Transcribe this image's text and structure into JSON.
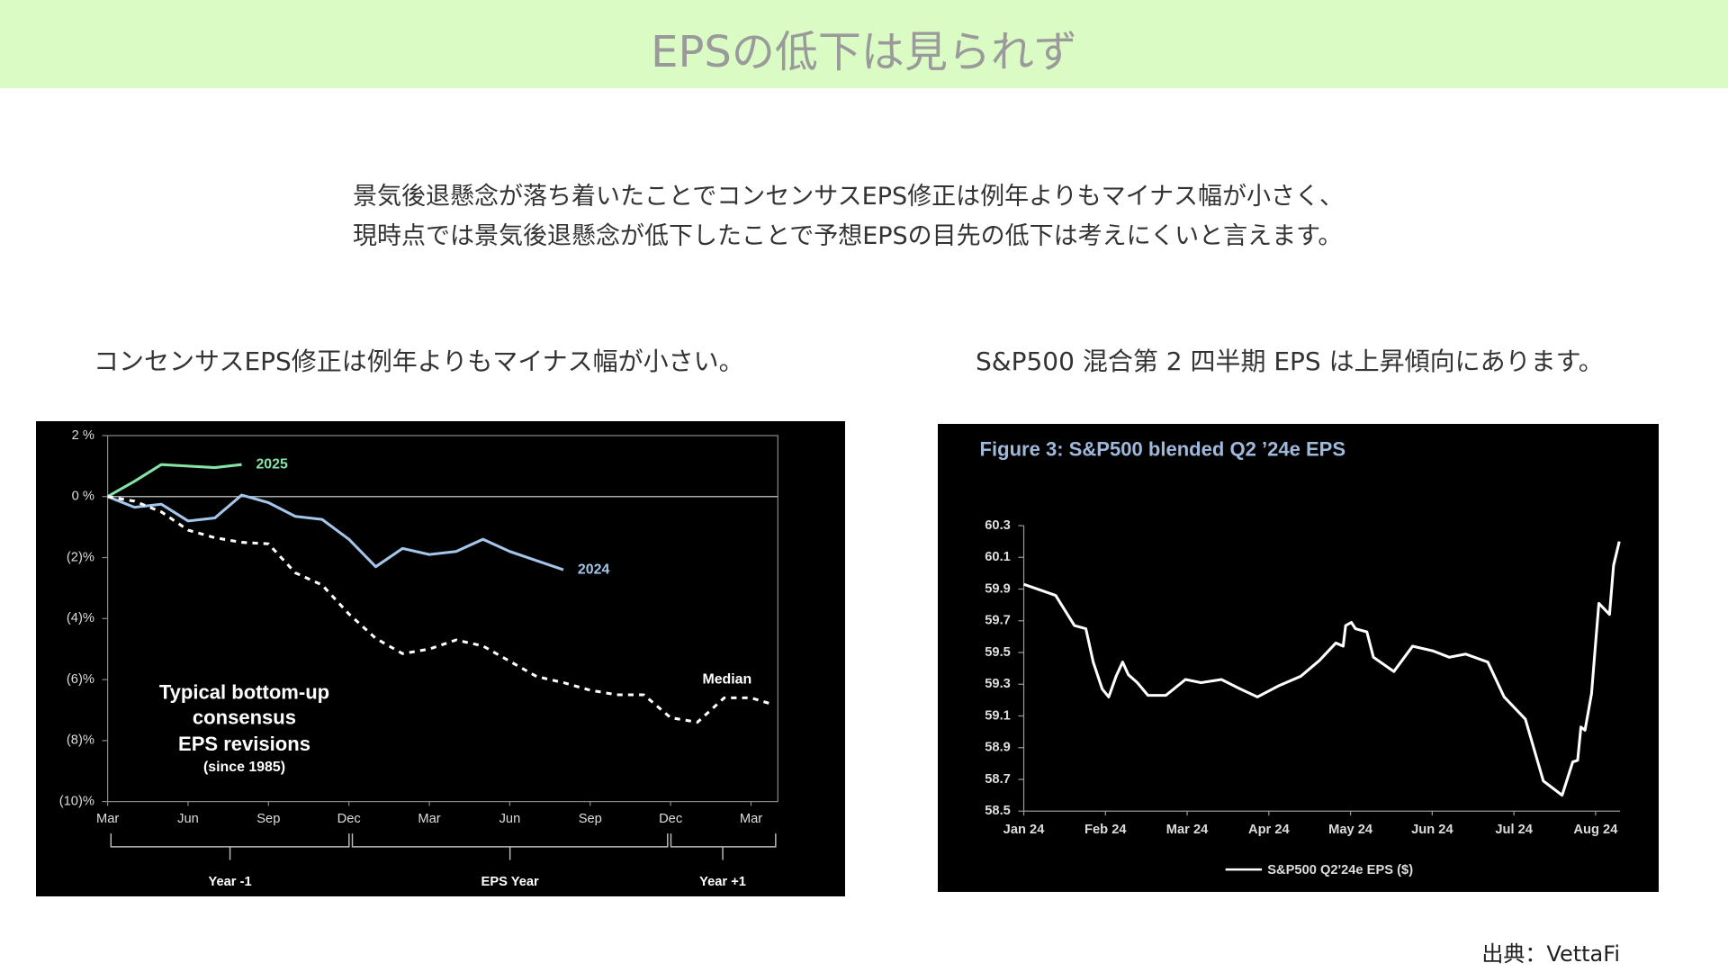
{
  "header": {
    "title": "EPSの低下は見られず"
  },
  "body": [
    "景気後退懸念が落ち着いたことでコンセンサスEPS修正は例年よりもマイナス幅が小さく、",
    "現時点では景気後退懸念が低下したことで予想EPSの目先の低下は考えにくいと言えます。"
  ],
  "captions": [
    "コンセンサスEPS修正は例年よりもマイナス幅が小さい。",
    "S&P500 混合第 2 四半期 EPS は上昇傾向にあります。"
  ],
  "source": "出典：VettaFi",
  "chart_data": [
    {
      "type": "line",
      "annotation": [
        "Typical bottom-up",
        "consensus",
        "EPS revisions",
        "(since 1985)"
      ],
      "periods": [
        "Year -1",
        "EPS Year",
        "Year +1"
      ],
      "xlim": [
        0,
        25
      ],
      "xticks": [
        {
          "value": 0,
          "label": "Mar"
        },
        {
          "value": 3,
          "label": "Jun"
        },
        {
          "value": 6,
          "label": "Sep"
        },
        {
          "value": 9,
          "label": "Dec"
        },
        {
          "value": 12,
          "label": "Mar"
        },
        {
          "value": 15,
          "label": "Jun"
        },
        {
          "value": 18,
          "label": "Sep"
        },
        {
          "value": 21,
          "label": "Dec"
        },
        {
          "value": 24,
          "label": "Mar"
        }
      ],
      "ylim": [
        -10,
        2
      ],
      "yticks": [
        {
          "value": 2,
          "label": "2 %"
        },
        {
          "value": 0,
          "label": "0 %"
        },
        {
          "value": -2,
          "label": "(2)%"
        },
        {
          "value": -4,
          "label": "(4)%"
        },
        {
          "value": -6,
          "label": "(6)%"
        },
        {
          "value": -8,
          "label": "(8)%"
        },
        {
          "value": -10,
          "label": "(10)%"
        }
      ],
      "zero_line": true,
      "series": [
        {
          "name": "2025",
          "color": "#86e3a6",
          "dashed": false,
          "x": [
            0,
            1,
            2,
            3,
            4,
            5
          ],
          "values": [
            0,
            0.5,
            1.05,
            1.0,
            0.95,
            1.05
          ]
        },
        {
          "name": "2024",
          "color": "#a3c6ea",
          "dashed": false,
          "x": [
            0,
            1,
            2,
            3,
            4,
            5,
            6,
            7,
            8,
            9,
            10,
            11,
            12,
            13,
            14,
            15,
            16,
            17
          ],
          "values": [
            0,
            -0.35,
            -0.25,
            -0.8,
            -0.7,
            0.05,
            -0.2,
            -0.65,
            -0.75,
            -1.4,
            -2.3,
            -1.7,
            -1.9,
            -1.8,
            -1.4,
            -1.8,
            -2.1,
            -2.4
          ]
        },
        {
          "name": "Median",
          "color": "#ffffff",
          "dashed": true,
          "x": [
            0,
            1,
            2,
            3,
            4,
            5,
            6,
            7,
            8,
            9,
            10,
            11,
            12,
            13,
            14,
            15,
            16,
            17,
            18,
            19,
            20,
            21,
            22,
            23,
            24,
            24.75
          ],
          "values": [
            0,
            -0.15,
            -0.5,
            -1.1,
            -1.35,
            -1.5,
            -1.55,
            -2.5,
            -2.9,
            -3.85,
            -4.65,
            -5.15,
            -5.0,
            -4.7,
            -4.9,
            -5.4,
            -5.9,
            -6.1,
            -6.35,
            -6.5,
            -6.5,
            -7.25,
            -7.4,
            -6.6,
            -6.6,
            -6.8
          ]
        }
      ]
    },
    {
      "type": "line",
      "title": "Figure 3: S&P500 blended Q2 ’24e EPS",
      "xlim": [
        0,
        7.3
      ],
      "xticks": [
        {
          "value": 0,
          "label": "Jan 24"
        },
        {
          "value": 1,
          "label": "Feb 24"
        },
        {
          "value": 2,
          "label": "Mar 24"
        },
        {
          "value": 3,
          "label": "Apr 24"
        },
        {
          "value": 4,
          "label": "May 24"
        },
        {
          "value": 5,
          "label": "Jun 24"
        },
        {
          "value": 6,
          "label": "Jul 24"
        },
        {
          "value": 7,
          "label": "Aug 24"
        }
      ],
      "ylim": [
        58.5,
        60.3
      ],
      "yticks": [
        58.5,
        58.7,
        58.9,
        59.1,
        59.3,
        59.5,
        59.7,
        59.9,
        60.1,
        60.3
      ],
      "legend": "bottom",
      "series": [
        {
          "name": "S&P500 Q2'24e EPS ($)",
          "color": "#ffffff",
          "dashed": false,
          "x": [
            0,
            0.39,
            0.62,
            0.76,
            0.85,
            0.96,
            1.04,
            1.13,
            1.21,
            1.28,
            1.39,
            1.52,
            1.74,
            1.98,
            2.17,
            2.42,
            2.65,
            2.86,
            3.12,
            3.39,
            3.62,
            3.82,
            3.91,
            3.94,
            4.01,
            4.06,
            4.2,
            4.28,
            4.53,
            4.76,
            5.01,
            5.21,
            5.41,
            5.68,
            5.88,
            6.14,
            6.36,
            6.59,
            6.72,
            6.78,
            6.82,
            6.87,
            6.95,
            7.0,
            7.04,
            7.17,
            7.22,
            7.29
          ],
          "values": [
            59.93,
            59.86,
            59.67,
            59.65,
            59.44,
            59.27,
            59.22,
            59.35,
            59.44,
            59.36,
            59.31,
            59.23,
            59.23,
            59.33,
            59.31,
            59.33,
            59.27,
            59.22,
            59.29,
            59.35,
            59.45,
            59.56,
            59.54,
            59.67,
            59.69,
            59.65,
            59.63,
            59.47,
            59.38,
            59.54,
            59.51,
            59.47,
            59.49,
            59.44,
            59.22,
            59.08,
            58.69,
            58.6,
            58.81,
            58.82,
            59.03,
            59.01,
            59.24,
            59.56,
            59.81,
            59.74,
            60.05,
            60.2
          ]
        }
      ]
    }
  ]
}
